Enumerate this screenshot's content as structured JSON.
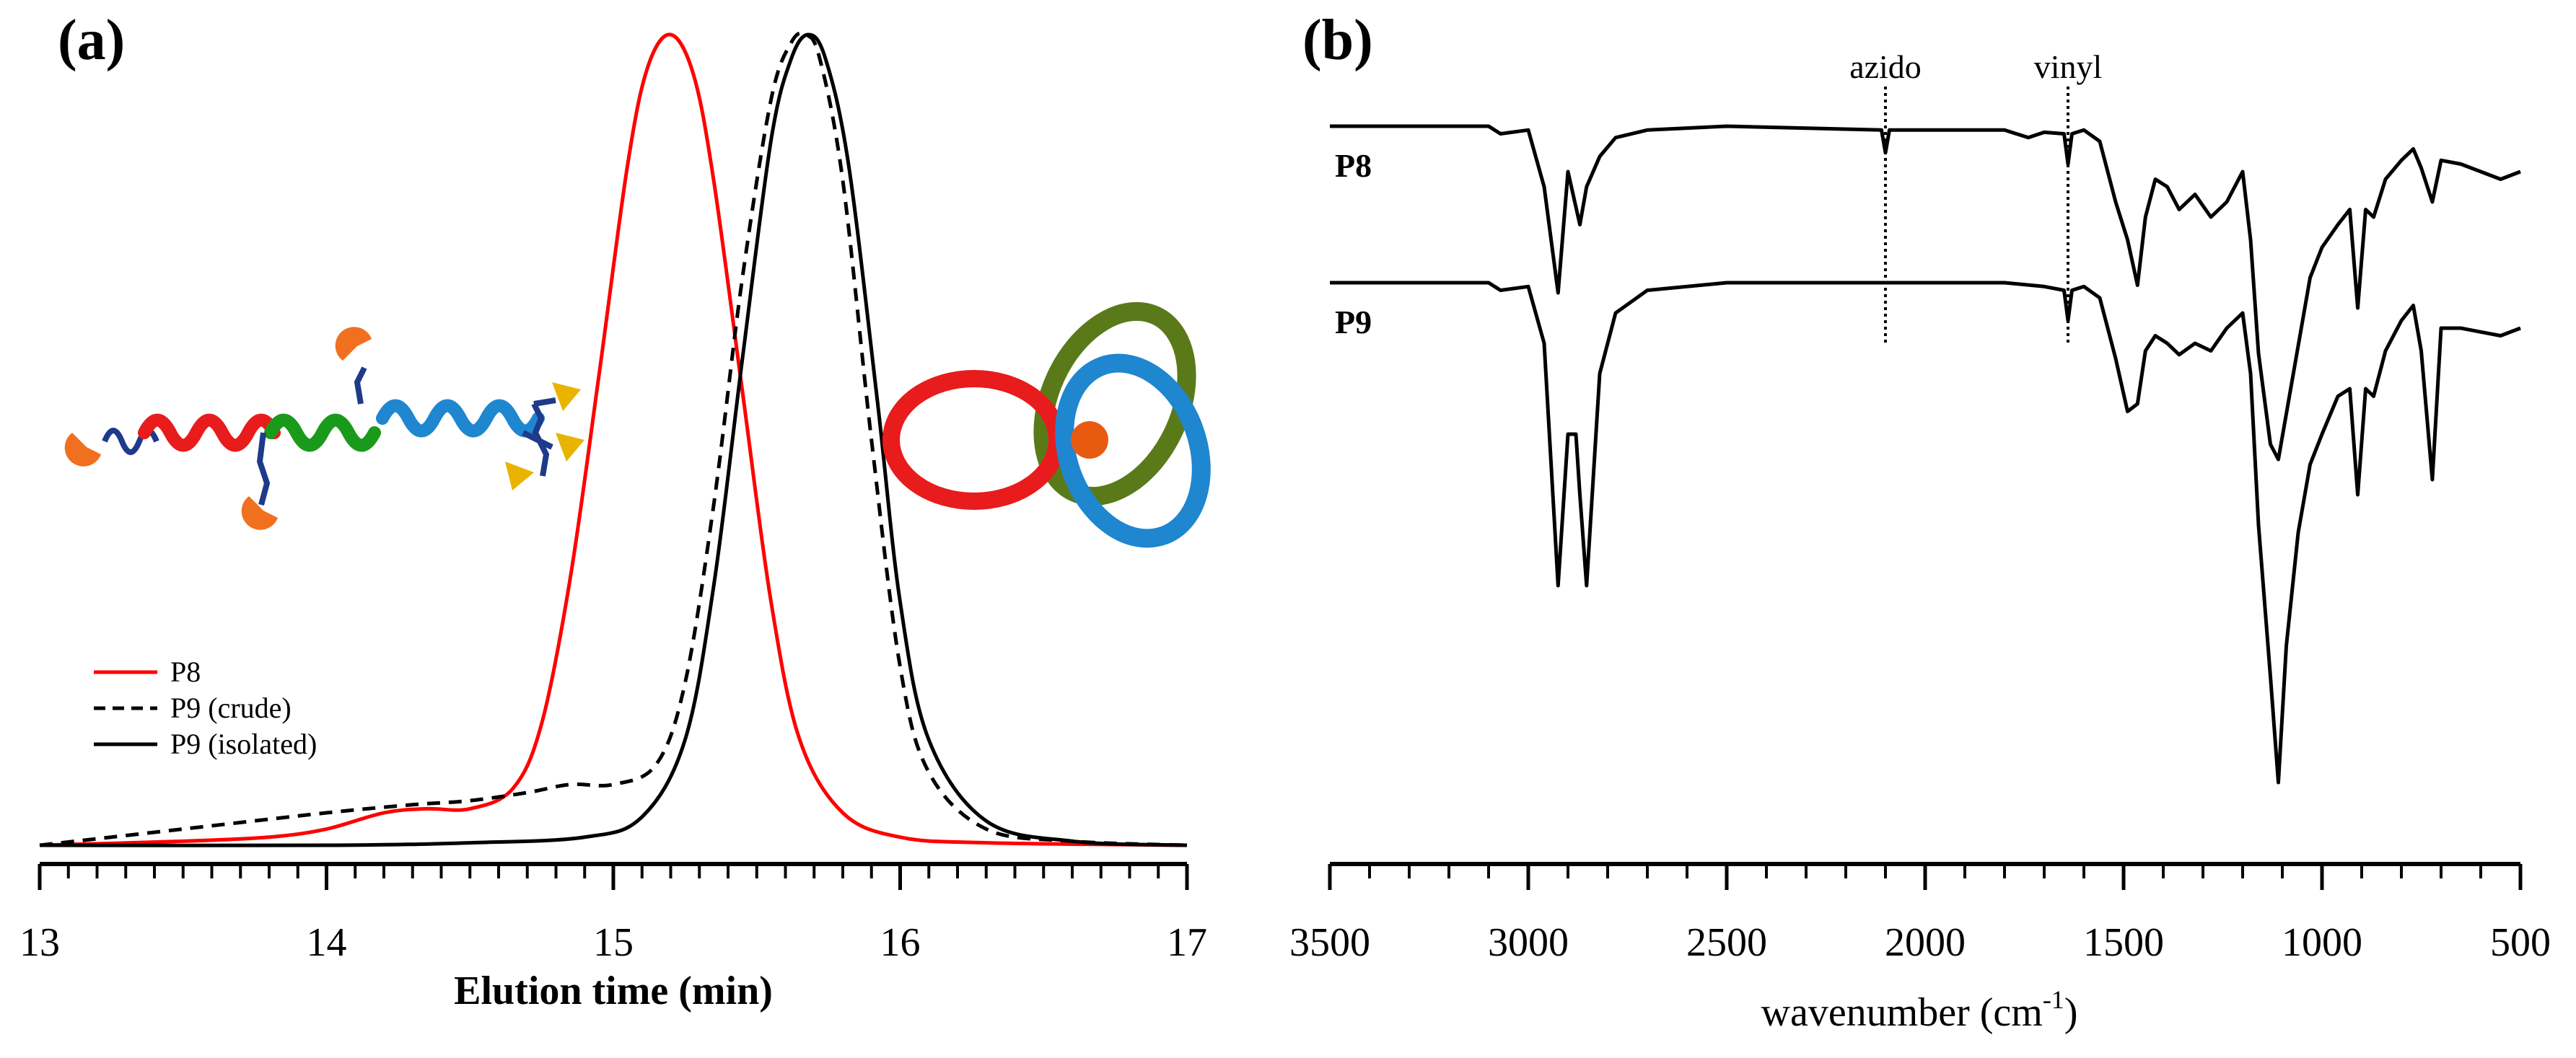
{
  "chart_data": [
    {
      "panel_label": "(a)",
      "type": "line",
      "title": "",
      "xlabel": "Elution time (min)",
      "ylabel": "",
      "xlim": [
        13,
        17
      ],
      "ylim": [
        0,
        1.0
      ],
      "xticks": [
        "13",
        "14",
        "15",
        "16",
        "17"
      ],
      "xtick_values": [
        13,
        14,
        15,
        16,
        17
      ],
      "legend_position": "bottom-left",
      "series": [
        {
          "name": "P8",
          "color": "#ff0000",
          "style": "solid",
          "x": [
            13.0,
            13.5,
            13.8,
            14.0,
            14.2,
            14.35,
            14.5,
            14.65,
            14.75,
            14.85,
            14.95,
            15.05,
            15.12,
            15.2,
            15.28,
            15.35,
            15.45,
            15.55,
            15.65,
            15.8,
            16.0,
            16.3,
            17.0
          ],
          "y": [
            0.0,
            0.005,
            0.01,
            0.02,
            0.04,
            0.045,
            0.045,
            0.07,
            0.15,
            0.33,
            0.58,
            0.84,
            0.96,
            1.0,
            0.95,
            0.82,
            0.56,
            0.3,
            0.13,
            0.04,
            0.01,
            0.003,
            0.0
          ]
        },
        {
          "name": "P9 (crude)",
          "color": "#000000",
          "style": "dashed",
          "x": [
            13.0,
            13.5,
            14.0,
            14.3,
            14.5,
            14.7,
            14.85,
            15.0,
            15.15,
            15.25,
            15.35,
            15.45,
            15.55,
            15.62,
            15.67,
            15.72,
            15.8,
            15.9,
            16.0,
            16.1,
            16.3,
            16.6,
            17.0
          ],
          "y": [
            0.0,
            0.02,
            0.04,
            0.05,
            0.055,
            0.065,
            0.075,
            0.075,
            0.1,
            0.2,
            0.42,
            0.7,
            0.92,
            0.99,
            1.0,
            0.97,
            0.82,
            0.5,
            0.22,
            0.09,
            0.02,
            0.005,
            0.0
          ]
        },
        {
          "name": "P9 (isolated)",
          "color": "#000000",
          "style": "solid",
          "x": [
            13.0,
            14.0,
            14.5,
            14.9,
            15.1,
            15.25,
            15.35,
            15.45,
            15.55,
            15.62,
            15.68,
            15.74,
            15.82,
            15.92,
            16.0,
            16.1,
            16.3,
            16.6,
            17.0
          ],
          "y": [
            0.0,
            0.0,
            0.003,
            0.01,
            0.035,
            0.13,
            0.32,
            0.6,
            0.87,
            0.97,
            1.0,
            0.97,
            0.84,
            0.55,
            0.3,
            0.13,
            0.03,
            0.005,
            0.0
          ]
        }
      ]
    },
    {
      "panel_label": "(b)",
      "type": "line",
      "title": "",
      "xlabel_main": "wavenumber (cm",
      "xlabel_sup": "-1",
      "xlabel_end": ")",
      "ylabel": "",
      "xlim": [
        3500,
        500
      ],
      "xticks": [
        "3500",
        "3000",
        "2500",
        "2000",
        "1500",
        "1000",
        "500"
      ],
      "xtick_values": [
        3500,
        3000,
        2500,
        2000,
        1500,
        1000,
        500
      ],
      "annotations": [
        {
          "text": "azido",
          "x": 2100
        },
        {
          "text": "vinyl",
          "x": 1640
        }
      ],
      "series": [
        {
          "name": "P8",
          "color": "#000000",
          "style": "solid",
          "offset": 0,
          "x": [
            3500,
            3100,
            3070,
            3000,
            2960,
            2925,
            2900,
            2870,
            2853,
            2820,
            2780,
            2700,
            2500,
            2110,
            2100,
            2090,
            1800,
            1740,
            1700,
            1650,
            1640,
            1630,
            1600,
            1560,
            1520,
            1490,
            1465,
            1445,
            1420,
            1390,
            1360,
            1320,
            1280,
            1240,
            1200,
            1180,
            1160,
            1130,
            1110,
            1090,
            1060,
            1030,
            1000,
            960,
            930,
            910,
            890,
            870,
            840,
            800,
            770,
            750,
            722,
            700,
            650,
            600,
            550,
            500
          ],
          "y": [
            0,
            0,
            -10,
            -5,
            -80,
            -220,
            -60,
            -130,
            -80,
            -40,
            -15,
            -5,
            0,
            -5,
            -35,
            -5,
            -5,
            -15,
            -8,
            -10,
            -50,
            -10,
            -5,
            -20,
            -100,
            -150,
            -210,
            -120,
            -70,
            -80,
            -110,
            -90,
            -120,
            -100,
            -60,
            -150,
            -300,
            -420,
            -440,
            -380,
            -290,
            -200,
            -160,
            -130,
            -110,
            -240,
            -110,
            -120,
            -70,
            -45,
            -30,
            -55,
            -100,
            -45,
            -50,
            -60,
            -70,
            -60
          ]
        },
        {
          "name": "P9",
          "color": "#000000",
          "style": "solid",
          "offset": 1,
          "x": [
            3500,
            3100,
            3070,
            3000,
            2960,
            2925,
            2900,
            2880,
            2870,
            2853,
            2820,
            2780,
            2700,
            2500,
            2100,
            1800,
            1700,
            1650,
            1640,
            1630,
            1600,
            1560,
            1520,
            1490,
            1465,
            1445,
            1420,
            1390,
            1360,
            1320,
            1280,
            1240,
            1200,
            1180,
            1160,
            1130,
            1110,
            1090,
            1060,
            1030,
            1000,
            960,
            930,
            910,
            890,
            870,
            840,
            800,
            770,
            750,
            722,
            700,
            650,
            600,
            550,
            500
          ],
          "y": [
            0,
            0,
            -10,
            -5,
            -80,
            -400,
            -200,
            -200,
            -280,
            -400,
            -120,
            -40,
            -10,
            0,
            0,
            0,
            -5,
            -10,
            -50,
            -10,
            -5,
            -20,
            -100,
            -170,
            -160,
            -90,
            -70,
            -80,
            -95,
            -80,
            -90,
            -60,
            -40,
            -120,
            -320,
            -520,
            -660,
            -480,
            -330,
            -240,
            -200,
            -150,
            -140,
            -280,
            -140,
            -150,
            -90,
            -50,
            -30,
            -90,
            -260,
            -60,
            -60,
            -65,
            -70,
            -60
          ]
        }
      ]
    }
  ]
}
